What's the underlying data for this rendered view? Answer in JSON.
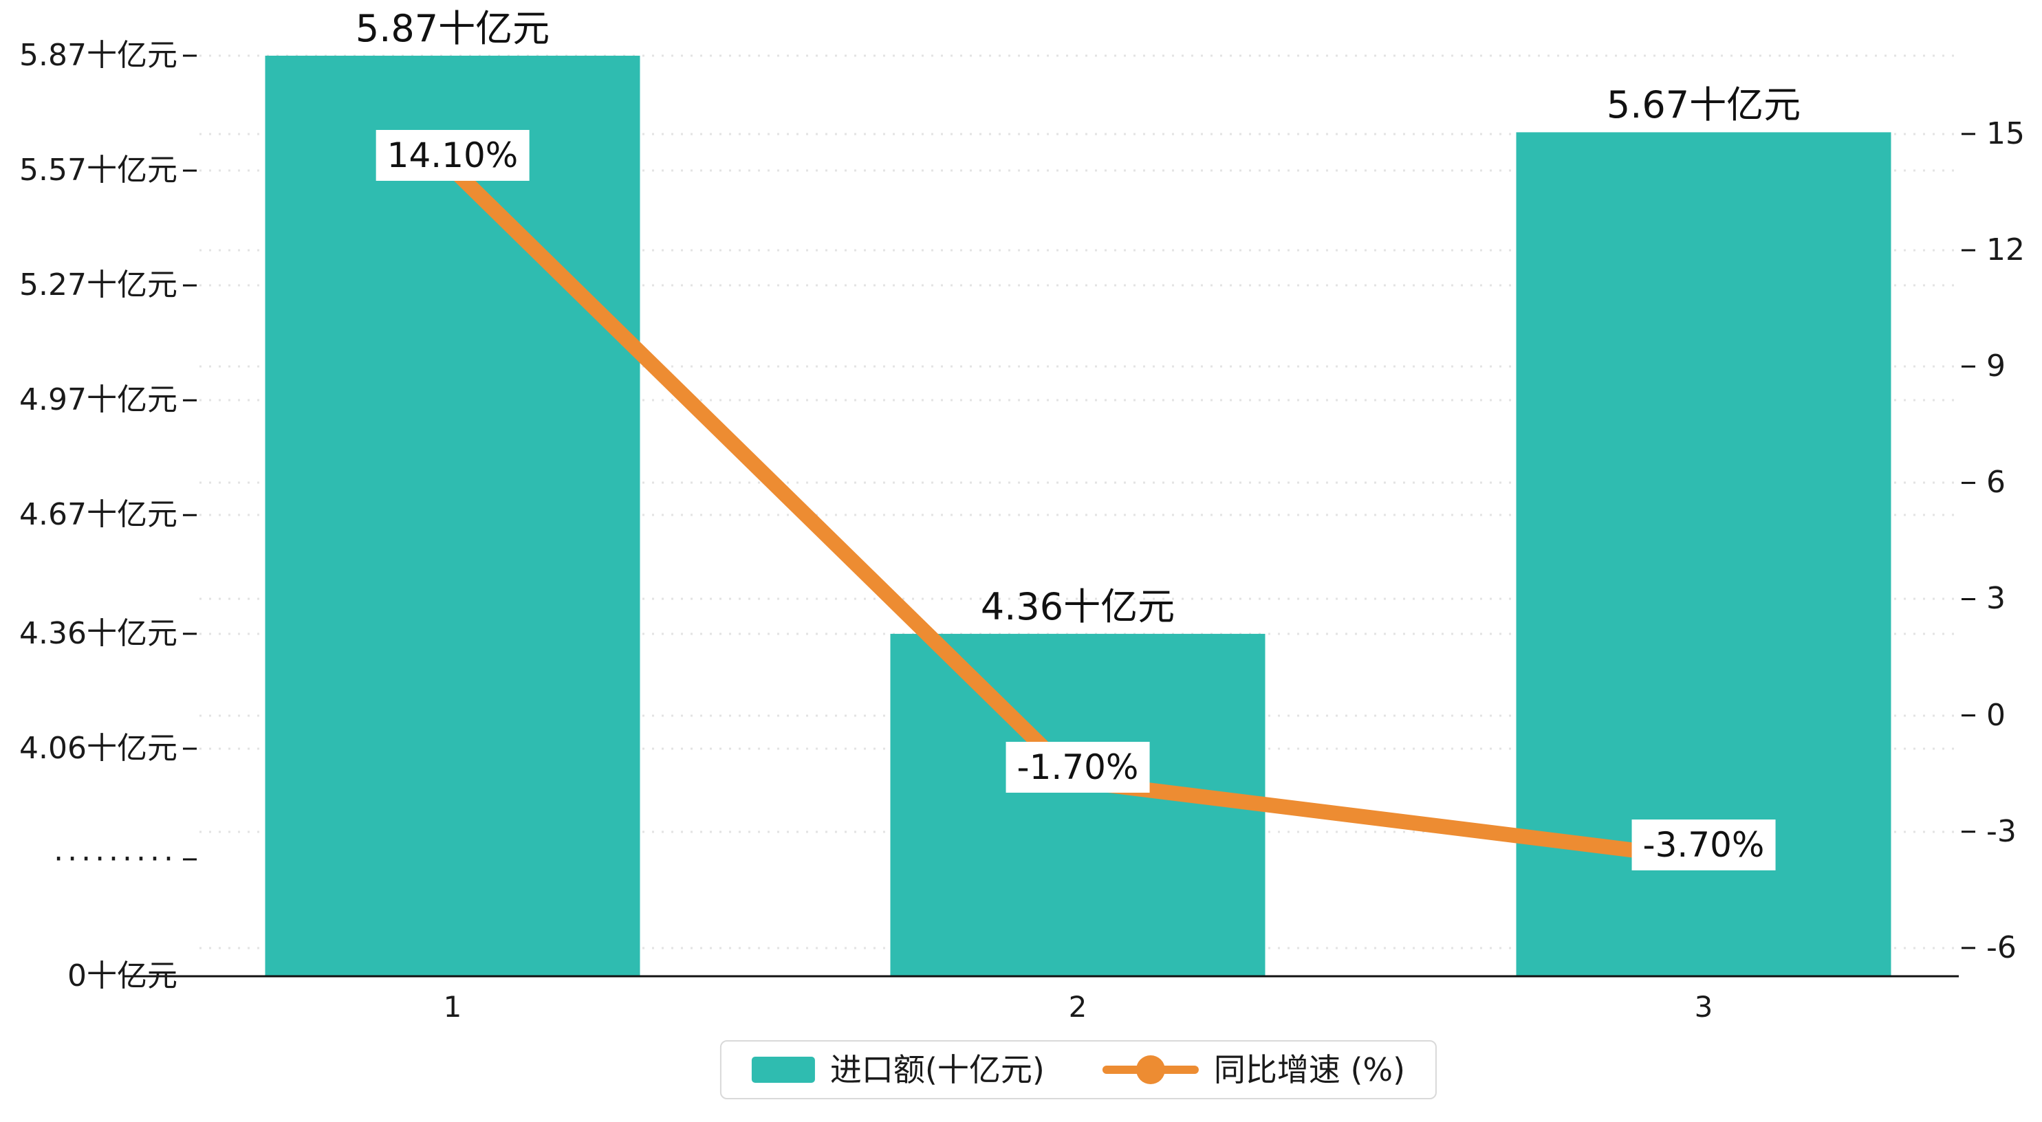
{
  "chart_data": {
    "type": "bar",
    "title": "",
    "categories": [
      "1",
      "2",
      "3"
    ],
    "series": [
      {
        "name": "进口额(十亿元)",
        "type": "bar",
        "axis": "left",
        "color": "#2fbcb0",
        "values": [
          5.87,
          4.36,
          5.67
        ],
        "value_labels": [
          "5.87十亿元",
          "4.36十亿元",
          "5.67十亿元"
        ]
      },
      {
        "name": "同比增速 (%)",
        "type": "line",
        "axis": "right",
        "color": "#ed8c32",
        "values": [
          14.1,
          -1.7,
          -3.7
        ],
        "value_labels": [
          "14.10%",
          "-1.70%",
          "-3.70%"
        ]
      }
    ],
    "left_axis": {
      "unit": "十亿元",
      "broken": true,
      "ticks": [
        {
          "label": "5.87十亿元",
          "value": 5.87
        },
        {
          "label": "5.57十亿元",
          "value": 5.57
        },
        {
          "label": "5.27十亿元",
          "value": 5.27
        },
        {
          "label": "4.97十亿元",
          "value": 4.97
        },
        {
          "label": "4.67十亿元",
          "value": 4.67
        },
        {
          "label": "4.36十亿元",
          "value": 4.36
        },
        {
          "label": "4.06十亿元",
          "value": 4.06
        },
        {
          "label": "·········",
          "value": null
        },
        {
          "label": "0十亿元",
          "value": 0
        }
      ]
    },
    "right_axis": {
      "ticks": [
        {
          "label": "15",
          "value": 15
        },
        {
          "label": "12",
          "value": 12
        },
        {
          "label": "9",
          "value": 9
        },
        {
          "label": "6",
          "value": 6
        },
        {
          "label": "3",
          "value": 3
        },
        {
          "label": "0",
          "value": 0
        },
        {
          "label": "-3",
          "value": -3
        },
        {
          "label": "-6",
          "value": -6
        }
      ]
    },
    "legend": {
      "position": "bottom-center",
      "items": [
        "进口额(十亿元)",
        "同比增速 (%)"
      ]
    },
    "grid": true,
    "colors": {
      "bar": "#2fbcb0",
      "line": "#ed8c32",
      "grid": "#e3e3e3",
      "axis": "#111111",
      "text": "#1a1a1a"
    }
  }
}
